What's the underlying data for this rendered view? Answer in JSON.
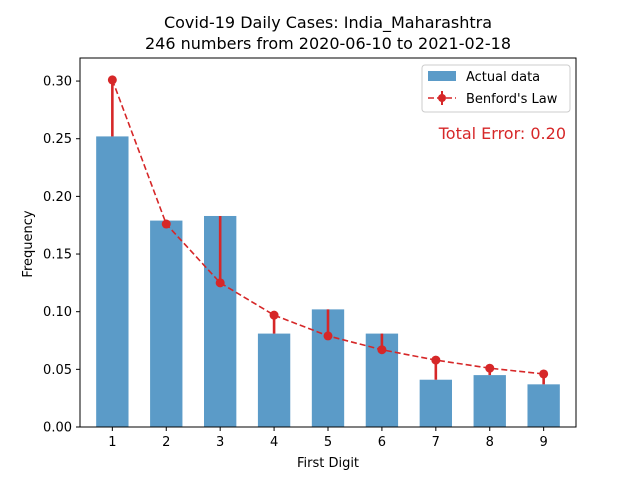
{
  "chart_data": {
    "type": "bar",
    "title": "Covid-19 Daily Cases: India_Maharashtra",
    "subtitle": "246 numbers from 2020-06-10 to 2021-02-18",
    "xlabel": "First Digit",
    "ylabel": "Frequency",
    "categories": [
      "1",
      "2",
      "3",
      "4",
      "5",
      "6",
      "7",
      "8",
      "9"
    ],
    "ylim": [
      0,
      0.32
    ],
    "yticks": [
      "0.00",
      "0.05",
      "0.10",
      "0.15",
      "0.20",
      "0.25",
      "0.30"
    ],
    "series": [
      {
        "name": "Actual data",
        "type": "bar",
        "color": "#5b9bc8",
        "values": [
          0.252,
          0.179,
          0.183,
          0.081,
          0.102,
          0.081,
          0.041,
          0.045,
          0.037
        ]
      },
      {
        "name": "Benford's Law",
        "type": "line",
        "style": "dashed",
        "marker": "circle",
        "color": "#d62728",
        "values": [
          0.301,
          0.176,
          0.125,
          0.097,
          0.079,
          0.067,
          0.058,
          0.051,
          0.046
        ]
      }
    ],
    "annotation": {
      "text": "Total Error: 0.20",
      "color": "#d62728"
    },
    "legend": {
      "position": "top-right"
    },
    "grid": false
  }
}
